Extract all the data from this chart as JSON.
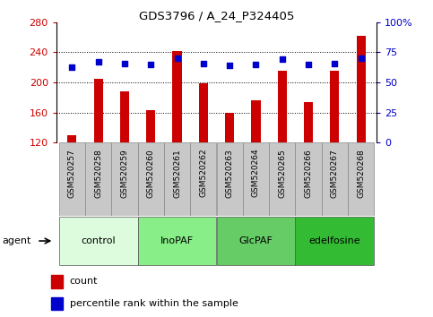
{
  "title": "GDS3796 / A_24_P324405",
  "samples": [
    "GSM520257",
    "GSM520258",
    "GSM520259",
    "GSM520260",
    "GSM520261",
    "GSM520262",
    "GSM520263",
    "GSM520264",
    "GSM520265",
    "GSM520266",
    "GSM520267",
    "GSM520268"
  ],
  "bar_values": [
    130,
    205,
    188,
    163,
    242,
    199,
    160,
    176,
    215,
    174,
    215,
    262
  ],
  "percentile_values": [
    63,
    67,
    66,
    65,
    70,
    66,
    64,
    65,
    69,
    65,
    66,
    70
  ],
  "bar_color": "#cc0000",
  "percentile_color": "#0000cc",
  "ylim_left": [
    120,
    280
  ],
  "ylim_right": [
    0,
    100
  ],
  "yticks_left": [
    120,
    160,
    200,
    240,
    280
  ],
  "yticks_right": [
    0,
    25,
    50,
    75,
    100
  ],
  "ytick_labels_right": [
    "0",
    "25",
    "50",
    "75",
    "100%"
  ],
  "groups": [
    {
      "label": "control",
      "start": 0,
      "end": 3,
      "color": "#ddfcdd"
    },
    {
      "label": "InoPAF",
      "start": 3,
      "end": 6,
      "color": "#88ee88"
    },
    {
      "label": "GlcPAF",
      "start": 6,
      "end": 9,
      "color": "#66cc66"
    },
    {
      "label": "edelfosine",
      "start": 9,
      "end": 12,
      "color": "#33bb33"
    }
  ],
  "legend_count_label": "count",
  "legend_pct_label": "percentile rank within the sample",
  "agent_label": "agent",
  "plot_bg_color": "#ffffff",
  "tick_label_color_left": "#cc0000",
  "tick_label_color_right": "#0000cc",
  "bar_width": 0.35,
  "sample_box_color": "#c8c8c8",
  "sample_box_edge": "#888888"
}
